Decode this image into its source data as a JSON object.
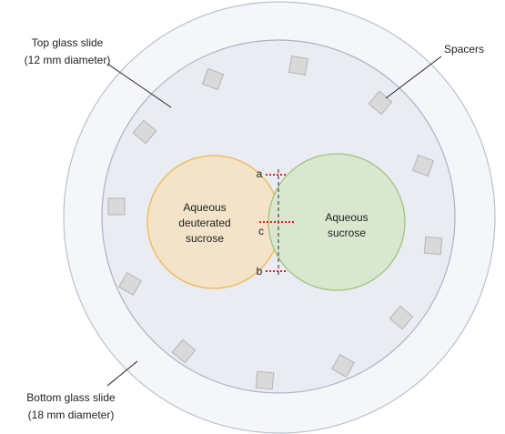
{
  "labels": {
    "top_slide": [
      "Top glass slide",
      "(12 mm diameter)"
    ],
    "spacers": "Spacers",
    "bottom_slide": [
      "Bottom glass slide",
      "(18 mm diameter)"
    ],
    "left_region": [
      "Aqueous",
      "deuterated",
      "sucrose"
    ],
    "right_region": [
      "Aqueous",
      "sucrose"
    ],
    "points": {
      "a": "a",
      "b": "b",
      "c": "c"
    }
  }
}
